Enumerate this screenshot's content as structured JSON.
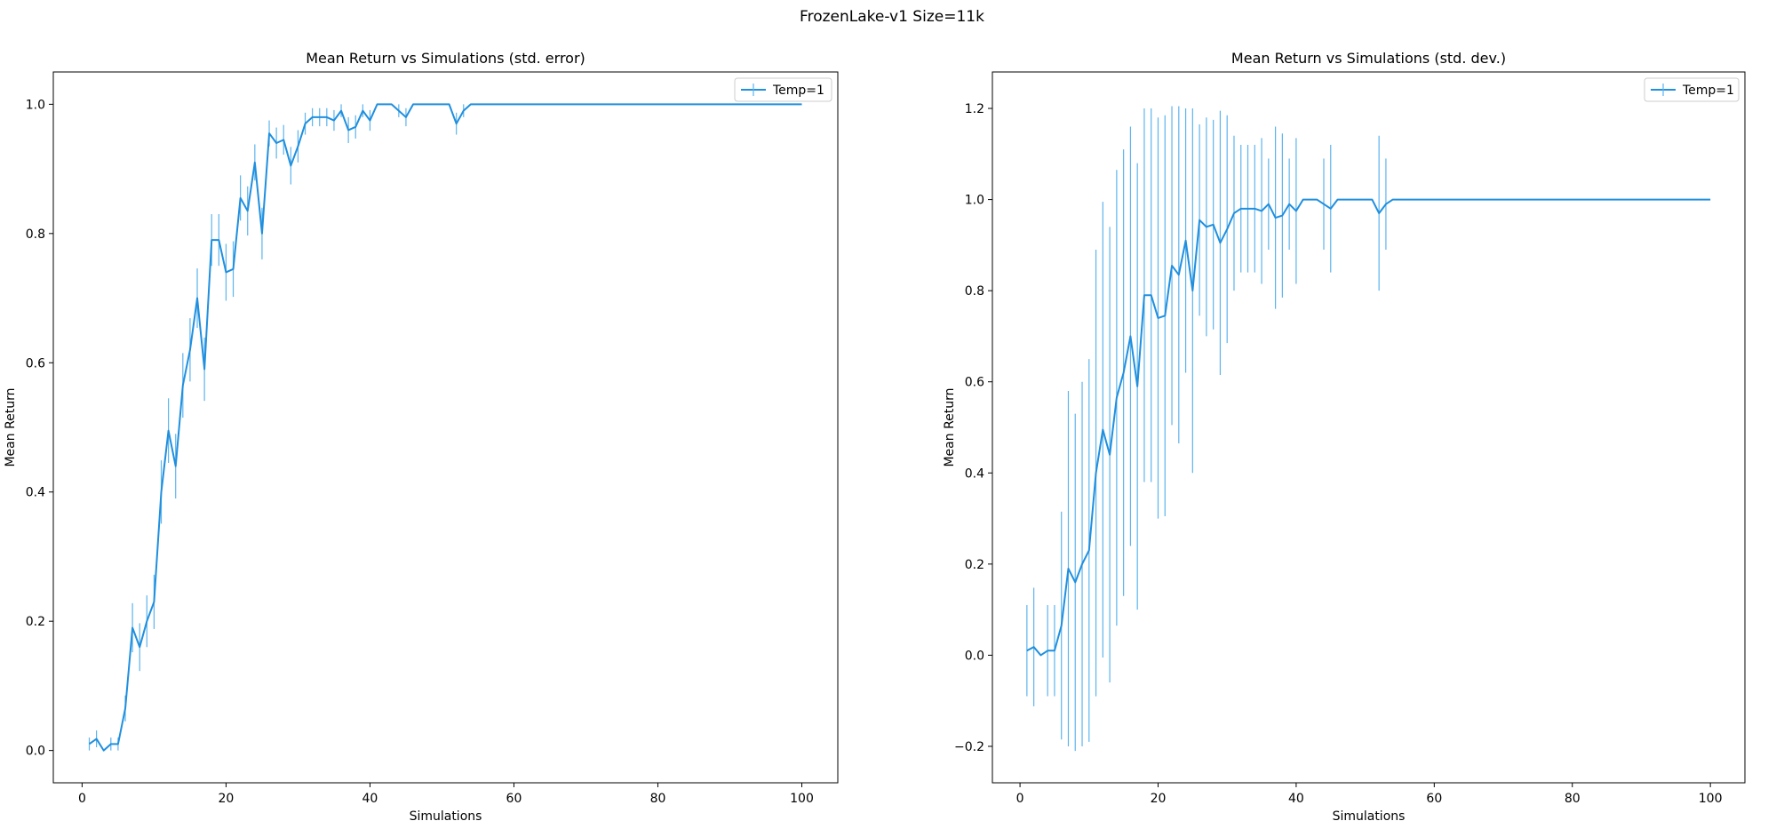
{
  "figure": {
    "suptitle": "FrozenLake-v1 Size=11k"
  },
  "colors": {
    "line": "#1f8fde",
    "errorbar": "#5db4ee",
    "axes": "#000000",
    "background": "#ffffff"
  },
  "chart_data": [
    {
      "type": "line",
      "title": "Mean Return vs Simulations (std. error)",
      "xlabel": "Simulations",
      "ylabel": "Mean Return",
      "xlim": [
        -4,
        105
      ],
      "ylim": [
        -0.05,
        1.05
      ],
      "xticks": [
        0,
        20,
        40,
        60,
        80,
        100
      ],
      "yticks": [
        0.0,
        0.2,
        0.4,
        0.6,
        0.8,
        1.0
      ],
      "xtick_labels": [
        "0",
        "20",
        "40",
        "60",
        "80",
        "100"
      ],
      "ytick_labels": [
        "0.0",
        "0.2",
        "0.4",
        "0.6",
        "0.8",
        "1.0"
      ],
      "grid": false,
      "legend": {
        "position": "top-right",
        "entries": [
          "Temp=1"
        ]
      },
      "series": [
        {
          "name": "Temp=1",
          "x": [
            1,
            2,
            3,
            4,
            5,
            6,
            7,
            8,
            9,
            10,
            11,
            12,
            13,
            14,
            15,
            16,
            17,
            18,
            19,
            20,
            21,
            22,
            23,
            24,
            25,
            26,
            27,
            28,
            29,
            30,
            31,
            32,
            33,
            34,
            35,
            36,
            37,
            38,
            39,
            40,
            41,
            42,
            43,
            44,
            45,
            46,
            47,
            48,
            49,
            50,
            51,
            52,
            53,
            54,
            55,
            60,
            70,
            80,
            90,
            100
          ],
          "y": [
            0.01,
            0.018,
            0.0,
            0.01,
            0.01,
            0.065,
            0.19,
            0.16,
            0.2,
            0.23,
            0.4,
            0.495,
            0.44,
            0.565,
            0.62,
            0.7,
            0.59,
            0.79,
            0.79,
            0.74,
            0.745,
            0.855,
            0.835,
            0.91,
            0.8,
            0.955,
            0.94,
            0.945,
            0.905,
            0.935,
            0.97,
            0.98,
            0.98,
            0.98,
            0.975,
            0.99,
            0.96,
            0.965,
            0.99,
            0.975,
            1.0,
            1.0,
            1.0,
            0.99,
            0.98,
            1.0,
            1.0,
            1.0,
            1.0,
            1.0,
            1.0,
            0.97,
            0.99,
            1.0,
            1.0,
            1.0,
            1.0,
            1.0,
            1.0,
            1.0
          ],
          "err": [
            0.01,
            0.013,
            0.0,
            0.01,
            0.01,
            0.02,
            0.038,
            0.037,
            0.04,
            0.042,
            0.049,
            0.05,
            0.05,
            0.05,
            0.049,
            0.046,
            0.049,
            0.04,
            0.04,
            0.044,
            0.043,
            0.035,
            0.038,
            0.028,
            0.04,
            0.02,
            0.024,
            0.023,
            0.029,
            0.025,
            0.017,
            0.014,
            0.014,
            0.014,
            0.016,
            0.01,
            0.02,
            0.018,
            0.01,
            0.016,
            0.0,
            0.0,
            0.0,
            0.01,
            0.014,
            0.0,
            0.0,
            0.0,
            0.0,
            0.0,
            0.0,
            0.017,
            0.01,
            0.0,
            0.0,
            0.0,
            0.0,
            0.0,
            0.0,
            0.0
          ]
        }
      ]
    },
    {
      "type": "line",
      "title": "Mean Return vs Simulations (std. dev.)",
      "xlabel": "Simulations",
      "ylabel": "Mean Return",
      "xlim": [
        -4,
        105
      ],
      "ylim": [
        -0.28,
        1.28
      ],
      "xticks": [
        0,
        20,
        40,
        60,
        80,
        100
      ],
      "yticks": [
        -0.2,
        0.0,
        0.2,
        0.4,
        0.6,
        0.8,
        1.0,
        1.2
      ],
      "xtick_labels": [
        "0",
        "20",
        "40",
        "60",
        "80",
        "100"
      ],
      "ytick_labels": [
        "−0.2",
        "0.0",
        "0.2",
        "0.4",
        "0.6",
        "0.8",
        "1.0",
        "1.2"
      ],
      "grid": false,
      "legend": {
        "position": "top-right",
        "entries": [
          "Temp=1"
        ]
      },
      "series": [
        {
          "name": "Temp=1",
          "x": [
            1,
            2,
            3,
            4,
            5,
            6,
            7,
            8,
            9,
            10,
            11,
            12,
            13,
            14,
            15,
            16,
            17,
            18,
            19,
            20,
            21,
            22,
            23,
            24,
            25,
            26,
            27,
            28,
            29,
            30,
            31,
            32,
            33,
            34,
            35,
            36,
            37,
            38,
            39,
            40,
            41,
            42,
            43,
            44,
            45,
            46,
            47,
            48,
            49,
            50,
            51,
            52,
            53,
            54,
            55,
            60,
            70,
            80,
            90,
            100
          ],
          "y": [
            0.01,
            0.018,
            0.0,
            0.01,
            0.01,
            0.065,
            0.19,
            0.16,
            0.2,
            0.23,
            0.4,
            0.495,
            0.44,
            0.565,
            0.62,
            0.7,
            0.59,
            0.79,
            0.79,
            0.74,
            0.745,
            0.855,
            0.835,
            0.91,
            0.8,
            0.955,
            0.94,
            0.945,
            0.905,
            0.935,
            0.97,
            0.98,
            0.98,
            0.98,
            0.975,
            0.99,
            0.96,
            0.965,
            0.99,
            0.975,
            1.0,
            1.0,
            1.0,
            0.99,
            0.98,
            1.0,
            1.0,
            1.0,
            1.0,
            1.0,
            1.0,
            0.97,
            0.99,
            1.0,
            1.0,
            1.0,
            1.0,
            1.0,
            1.0,
            1.0
          ],
          "err": [
            0.1,
            0.13,
            0.0,
            0.1,
            0.1,
            0.25,
            0.39,
            0.37,
            0.4,
            0.42,
            0.49,
            0.5,
            0.5,
            0.5,
            0.49,
            0.46,
            0.49,
            0.41,
            0.41,
            0.44,
            0.44,
            0.35,
            0.37,
            0.29,
            0.4,
            0.21,
            0.24,
            0.23,
            0.29,
            0.25,
            0.17,
            0.14,
            0.14,
            0.14,
            0.16,
            0.1,
            0.2,
            0.18,
            0.1,
            0.16,
            0.0,
            0.0,
            0.0,
            0.1,
            0.14,
            0.0,
            0.0,
            0.0,
            0.0,
            0.0,
            0.0,
            0.17,
            0.1,
            0.0,
            0.0,
            0.0,
            0.0,
            0.0,
            0.0,
            0.0
          ]
        }
      ]
    }
  ]
}
